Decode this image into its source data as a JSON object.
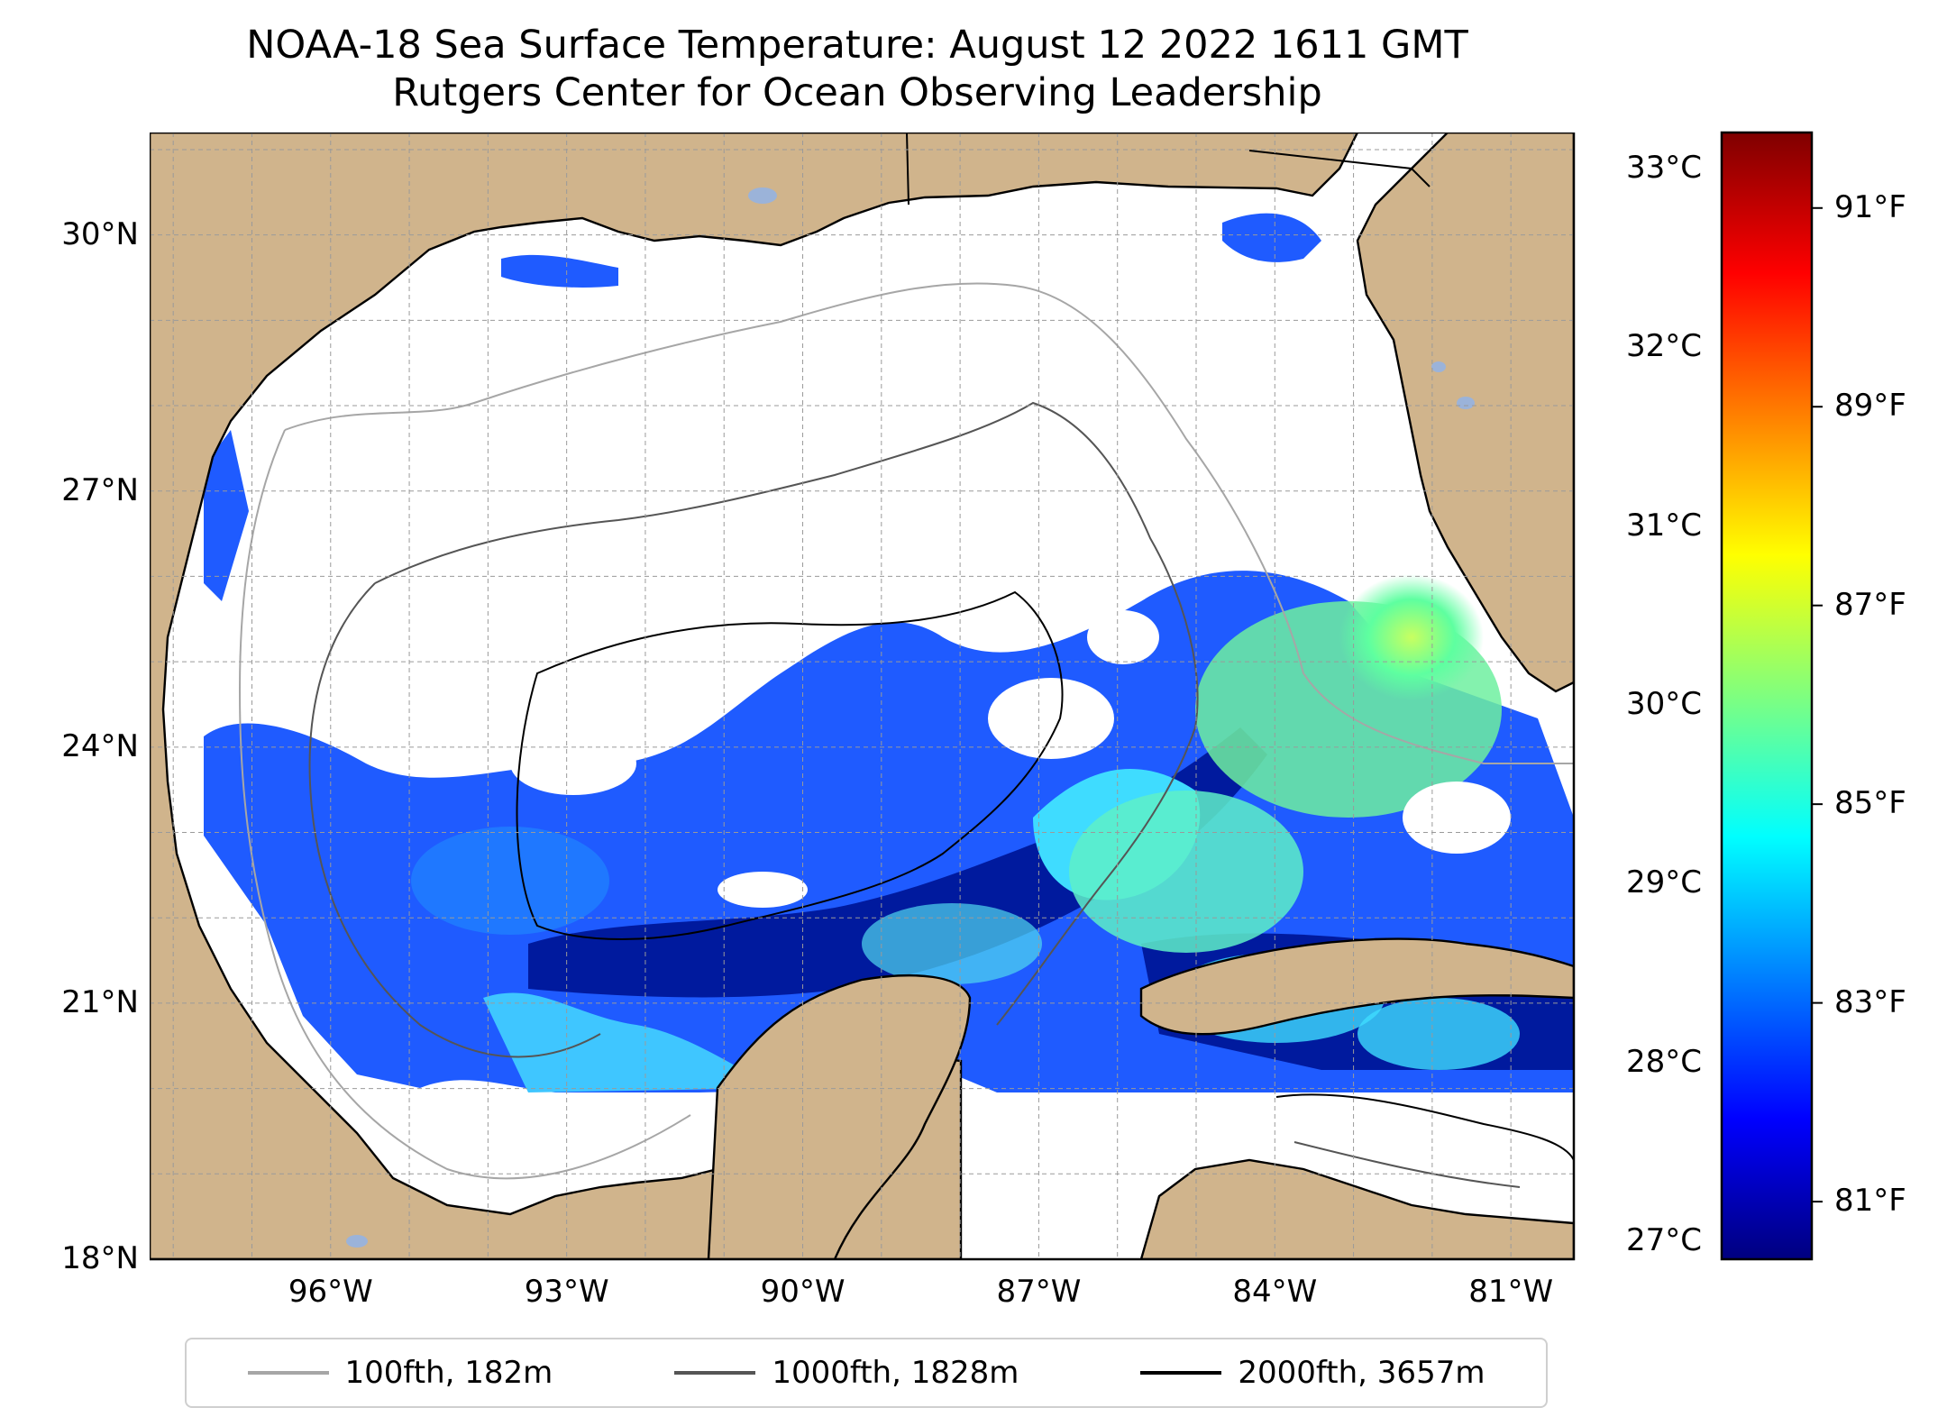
{
  "title": {
    "line1": "NOAA-18 Sea Surface Temperature: August 12 2022 1611 GMT",
    "line2": "Rutgers Center for Ocean Observing Leadership"
  },
  "map": {
    "lat_range": [
      18,
      31.2
    ],
    "lon_range": [
      -98.3,
      -80.2
    ],
    "lat_ticks": [
      {
        "value": 18,
        "label": "18°N"
      },
      {
        "value": 21,
        "label": "21°N"
      },
      {
        "value": 24,
        "label": "24°N"
      },
      {
        "value": 27,
        "label": "27°N"
      },
      {
        "value": 30,
        "label": "30°N"
      }
    ],
    "lon_ticks": [
      {
        "value": -96,
        "label": "96°W"
      },
      {
        "value": -93,
        "label": "93°W"
      },
      {
        "value": -90,
        "label": "90°W"
      },
      {
        "value": -87,
        "label": "87°W"
      },
      {
        "value": -84,
        "label": "84°W"
      },
      {
        "value": -81,
        "label": "81°W"
      }
    ],
    "grid": "dashed",
    "colors": {
      "land": "#d0b48c",
      "missing_data": "#ffffff",
      "coast": "#000000",
      "lakes": "#9bb3d9"
    }
  },
  "colorbar": {
    "celsius_labels": [
      "33°C",
      "32°C",
      "31°C",
      "30°C",
      "29°C",
      "28°C",
      "27°C"
    ],
    "fahrenheit_labels": [
      "91°F",
      "89°F",
      "87°F",
      "85°F",
      "83°F",
      "81°F"
    ],
    "colormap": "jet",
    "colors": [
      "#00007f",
      "#0000ff",
      "#007fff",
      "#00ffff",
      "#7fff7f",
      "#ffff00",
      "#ff7f00",
      "#ff0000",
      "#7f0000"
    ]
  },
  "legend": {
    "placement": "bottom-center",
    "items": [
      {
        "label": "100fth, 182m",
        "color": "#a6a6a6"
      },
      {
        "label": "1000fth, 1828m",
        "color": "#555555"
      },
      {
        "label": "2000fth, 3657m",
        "color": "#000000"
      }
    ]
  }
}
